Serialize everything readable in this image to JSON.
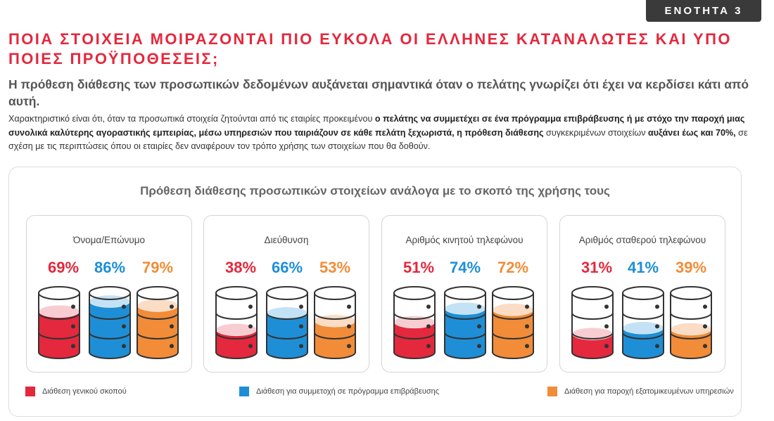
{
  "header": {
    "section_badge": "ΕΝΟΤΗΤΑ 3"
  },
  "title": "ΠΟΙΑ ΣΤΟΙΧΕΙΑ ΜΟΙΡΑΖΟΝΤΑΙ ΠΙΟ ΕΥΚΟΛΑ ΟΙ ΕΛΛΗΝΕΣ ΚΑΤΑΝΑΛΩΤΕΣ ΚΑΙ ΥΠΟ ΠΟΙΕΣ ΠΡΟΫΠΟΘΕΣΕΙΣ;",
  "subtitle": "Η πρόθεση διάθεσης των προσωπικών δεδομένων αυξάνεται σημαντικά όταν ο πελάτης γνωρίζει ότι έχει να κερδίσει κάτι από αυτή.",
  "body": {
    "p1": "Χαρακτηριστικό είναι ότι, όταν τα προσωπικά στοιχεία ζητούνται από τις εταιρίες προκειμένου ",
    "b1": "ο πελάτης να συμμετέχει σε ένα πρόγραμμα επιβράβευσης ή με στόχο την παροχή μιας συνολικά καλύτερης αγοραστικής εμπειρίας, μέσω υπηρεσιών που ταιριάζουν σε κάθε πελάτη ξεχωριστά, η πρόθεση διάθεσης",
    "p2": " συγκεκριμένων στοιχείων ",
    "b2": "αυξάνει έως και 70%,",
    "p3": " σε σχέση με τις περιπτώσεις όπου οι εταιρίες δεν αναφέρουν τον τρόπο χρήσης των στοιχείων που θα δοθούν."
  },
  "colors": {
    "red": "#e4283d",
    "blue": "#1e8fd6",
    "orange": "#f28c38"
  },
  "chart_data": {
    "type": "bar",
    "title": "Πρόθεση διάθεσης προσωπικών στοιχείων ανάλογα με το σκοπό της χρήσης τους",
    "categories": [
      "Όνομα/Επώνυμο",
      "Διεύθυνση",
      "Αριθμός κινητού τηλεφώνου",
      "Αριθμός σταθερού τηλεφώνου"
    ],
    "unit": "%",
    "ylim": [
      0,
      100
    ],
    "legend_position": "bottom",
    "series": [
      {
        "name": "Διάθεση γενικού σκοπού",
        "color": "#e4283d",
        "values": [
          69,
          38,
          51,
          31
        ]
      },
      {
        "name": "Διάθεση για συμμετοχή σε πρόγραμμα επιβράβευσης",
        "color": "#1e8fd6",
        "values": [
          86,
          66,
          74,
          41
        ]
      },
      {
        "name": "Διάθεση για παροχή εξατομικευμένων υπηρεσιών",
        "color": "#f28c38",
        "values": [
          79,
          53,
          72,
          39
        ]
      }
    ],
    "value_labels": [
      [
        "69%",
        "86%",
        "79%"
      ],
      [
        "38%",
        "66%",
        "53%"
      ],
      [
        "51%",
        "74%",
        "72%"
      ],
      [
        "31%",
        "41%",
        "39%"
      ]
    ]
  }
}
